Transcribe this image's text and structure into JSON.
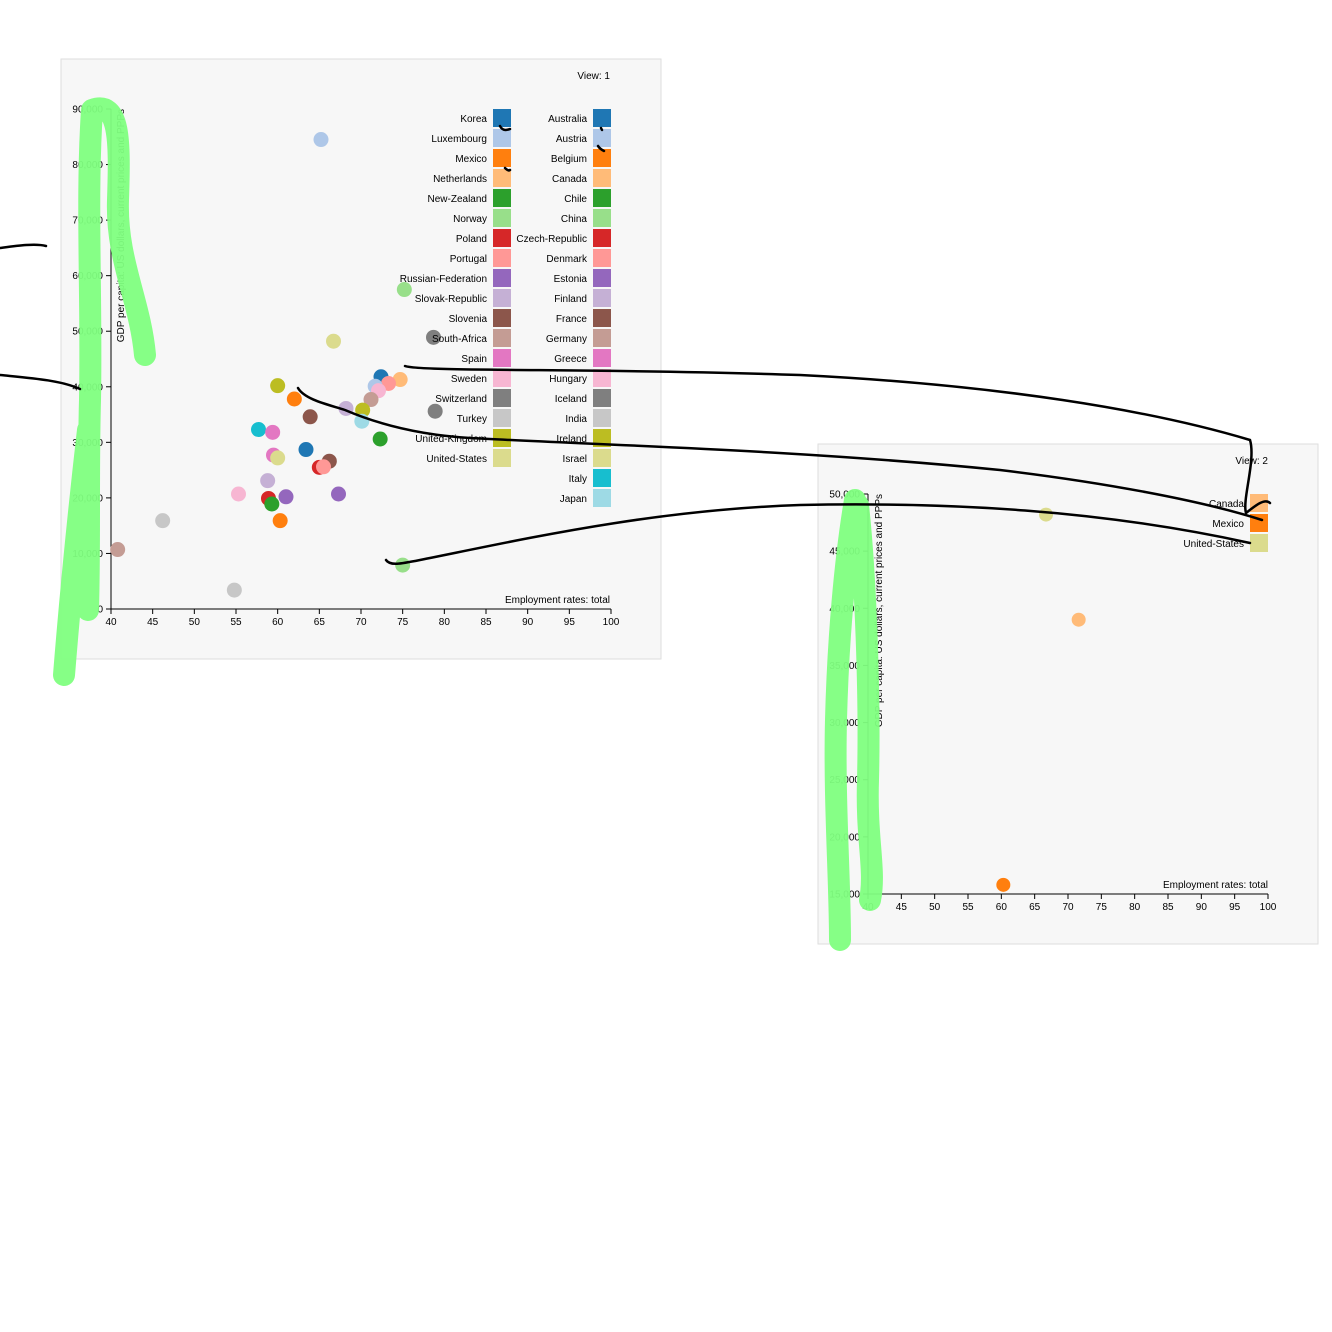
{
  "chart_data": [
    {
      "type": "scatter",
      "view_label": "View: 1",
      "xlabel": "Employment rates: total",
      "ylabel": "GDP per capita: US dollars, current prices and PPPs",
      "xlim": [
        40,
        100
      ],
      "ylim": [
        0,
        90000
      ],
      "x_ticks": [
        "40",
        "45",
        "50",
        "55",
        "60",
        "65",
        "70",
        "75",
        "80",
        "85",
        "90",
        "95",
        "100"
      ],
      "y_ticks": [
        "0",
        "10,000",
        "20,000",
        "30,000",
        "40,000",
        "50,000",
        "60,000",
        "70,000",
        "80,000",
        "90,000"
      ],
      "legend": {
        "columns": [
          [
            {
              "name": "Korea",
              "color": "#1f77b4"
            },
            {
              "name": "Luxembourg",
              "color": "#aec7e8"
            },
            {
              "name": "Mexico",
              "color": "#ff7f0e"
            },
            {
              "name": "Netherlands",
              "color": "#ffbb78"
            },
            {
              "name": "New-Zealand",
              "color": "#2ca02c"
            },
            {
              "name": "Norway",
              "color": "#98df8a"
            },
            {
              "name": "Poland",
              "color": "#d62728"
            },
            {
              "name": "Portugal",
              "color": "#ff9896"
            },
            {
              "name": "Russian-Federation",
              "color": "#9467bd"
            },
            {
              "name": "Slovak-Republic",
              "color": "#c5b0d5"
            },
            {
              "name": "Slovenia",
              "color": "#8c564b"
            },
            {
              "name": "South-Africa",
              "color": "#c49c94"
            },
            {
              "name": "Spain",
              "color": "#e377c2"
            },
            {
              "name": "Sweden",
              "color": "#f7b6d2"
            },
            {
              "name": "Switzerland",
              "color": "#7f7f7f"
            },
            {
              "name": "Turkey",
              "color": "#c7c7c7"
            },
            {
              "name": "United-Kingdom",
              "color": "#bcbd22"
            },
            {
              "name": "United-States",
              "color": "#dbdb8d"
            }
          ],
          [
            {
              "name": "Australia",
              "color": "#1f77b4"
            },
            {
              "name": "Austria",
              "color": "#aec7e8"
            },
            {
              "name": "Belgium",
              "color": "#ff7f0e"
            },
            {
              "name": "Canada",
              "color": "#ffbb78"
            },
            {
              "name": "Chile",
              "color": "#2ca02c"
            },
            {
              "name": "China",
              "color": "#98df8a"
            },
            {
              "name": "Czech-Republic",
              "color": "#d62728"
            },
            {
              "name": "Denmark",
              "color": "#ff9896"
            },
            {
              "name": "Estonia",
              "color": "#9467bd"
            },
            {
              "name": "Finland",
              "color": "#c5b0d5"
            },
            {
              "name": "France",
              "color": "#8c564b"
            },
            {
              "name": "Germany",
              "color": "#c49c94"
            },
            {
              "name": "Greece",
              "color": "#e377c2"
            },
            {
              "name": "Hungary",
              "color": "#f7b6d2"
            },
            {
              "name": "Iceland",
              "color": "#7f7f7f"
            },
            {
              "name": "India",
              "color": "#c7c7c7"
            },
            {
              "name": "Ireland",
              "color": "#bcbd22"
            },
            {
              "name": "Israel",
              "color": "#dbdb8d"
            },
            {
              "name": "Italy",
              "color": "#17becf"
            },
            {
              "name": "Japan",
              "color": "#9edae5"
            }
          ]
        ]
      },
      "points": [
        {
          "x": 65.2,
          "y": 84500,
          "color": "#aec7e8"
        },
        {
          "x": 75.2,
          "y": 57500,
          "color": "#98df8a"
        },
        {
          "x": 66.7,
          "y": 48200,
          "color": "#dbdb8d"
        },
        {
          "x": 78.7,
          "y": 48900,
          "color": "#7f7f7f"
        },
        {
          "x": 72.4,
          "y": 41800,
          "color": "#1f77b4"
        },
        {
          "x": 74.7,
          "y": 41300,
          "color": "#ffbb78"
        },
        {
          "x": 73.3,
          "y": 40600,
          "color": "#ff9896"
        },
        {
          "x": 71.7,
          "y": 40100,
          "color": "#aec7e8"
        },
        {
          "x": 72.1,
          "y": 39300,
          "color": "#f7b6d2"
        },
        {
          "x": 71.2,
          "y": 37700,
          "color": "#c49c94"
        },
        {
          "x": 70.2,
          "y": 35800,
          "color": "#bcbd22"
        },
        {
          "x": 68.2,
          "y": 36100,
          "color": "#c5b0d5"
        },
        {
          "x": 70.1,
          "y": 33800,
          "color": "#9edae5"
        },
        {
          "x": 78.9,
          "y": 35600,
          "color": "#7f7f7f"
        },
        {
          "x": 60.0,
          "y": 40200,
          "color": "#bcbd22"
        },
        {
          "x": 62.0,
          "y": 37800,
          "color": "#ff7f0e"
        },
        {
          "x": 63.9,
          "y": 34600,
          "color": "#8c564b"
        },
        {
          "x": 72.3,
          "y": 30600,
          "color": "#2ca02c"
        },
        {
          "x": 57.7,
          "y": 32300,
          "color": "#17becf"
        },
        {
          "x": 59.4,
          "y": 31800,
          "color": "#e377c2"
        },
        {
          "x": 63.4,
          "y": 28700,
          "color": "#1f77b4"
        },
        {
          "x": 59.5,
          "y": 27700,
          "color": "#e377c2"
        },
        {
          "x": 60.0,
          "y": 27200,
          "color": "#dbdb8d"
        },
        {
          "x": 66.2,
          "y": 26600,
          "color": "#8c564b"
        },
        {
          "x": 65.0,
          "y": 25500,
          "color": "#d62728"
        },
        {
          "x": 65.5,
          "y": 25600,
          "color": "#ff9896"
        },
        {
          "x": 58.8,
          "y": 23100,
          "color": "#c5b0d5"
        },
        {
          "x": 55.3,
          "y": 20700,
          "color": "#f7b6d2"
        },
        {
          "x": 61.0,
          "y": 20200,
          "color": "#9467bd"
        },
        {
          "x": 67.3,
          "y": 20700,
          "color": "#9467bd"
        },
        {
          "x": 58.9,
          "y": 19900,
          "color": "#d62728"
        },
        {
          "x": 59.3,
          "y": 18900,
          "color": "#2ca02c"
        },
        {
          "x": 60.3,
          "y": 15900,
          "color": "#ff7f0e"
        },
        {
          "x": 46.2,
          "y": 15900,
          "color": "#c7c7c7"
        },
        {
          "x": 40.8,
          "y": 10700,
          "color": "#c49c94"
        },
        {
          "x": 54.8,
          "y": 3400,
          "color": "#c7c7c7"
        },
        {
          "x": 75.0,
          "y": 7900,
          "color": "#98df8a"
        }
      ]
    },
    {
      "type": "scatter",
      "view_label": "View: 2",
      "xlabel": "Employment rates: total",
      "ylabel": "GDP per capita: US dollars, current prices and PPPs",
      "xlim": [
        40,
        100
      ],
      "ylim": [
        15000,
        50000
      ],
      "x_ticks": [
        "40",
        "45",
        "50",
        "55",
        "60",
        "65",
        "70",
        "75",
        "80",
        "85",
        "90",
        "95",
        "100"
      ],
      "y_ticks": [
        "15,000",
        "20,000",
        "25,000",
        "30,000",
        "35,000",
        "40,000",
        "45,000",
        "50,000"
      ],
      "legend": {
        "columns": [
          [
            {
              "name": "Canada",
              "color": "#ffbb78"
            },
            {
              "name": "Mexico",
              "color": "#ff7f0e"
            },
            {
              "name": "United-States",
              "color": "#dbdb8d"
            }
          ]
        ]
      },
      "points": [
        {
          "x": 66.7,
          "y": 48200,
          "color": "#dbdb8d"
        },
        {
          "x": 71.6,
          "y": 39000,
          "color": "#ffbb78"
        },
        {
          "x": 60.3,
          "y": 15800,
          "color": "#ff7f0e"
        }
      ]
    }
  ],
  "annotations": {
    "highlight_color": "#7fff7f",
    "ink_color": "#000000"
  }
}
